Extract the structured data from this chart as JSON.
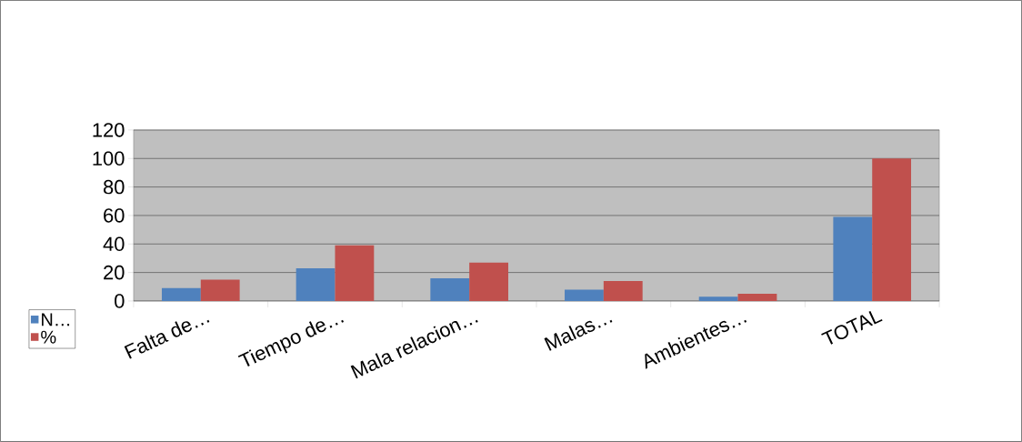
{
  "chart_data": {
    "type": "bar",
    "categories": [
      "Falta de…",
      "Tiempo de…",
      "Mala relacion…",
      "Malas…",
      "Ambientes…",
      "TOTAL"
    ],
    "series": [
      {
        "name": "N…",
        "color": "#4f81bd",
        "values": [
          9,
          23,
          16,
          8,
          3,
          59
        ]
      },
      {
        "name": "%",
        "color": "#c0504d",
        "values": [
          15,
          39,
          27,
          14,
          5,
          100
        ]
      }
    ],
    "ylim": [
      0,
      120
    ],
    "yticks": [
      0,
      20,
      40,
      60,
      80,
      100,
      120
    ],
    "grid": "y",
    "legend": "left"
  }
}
